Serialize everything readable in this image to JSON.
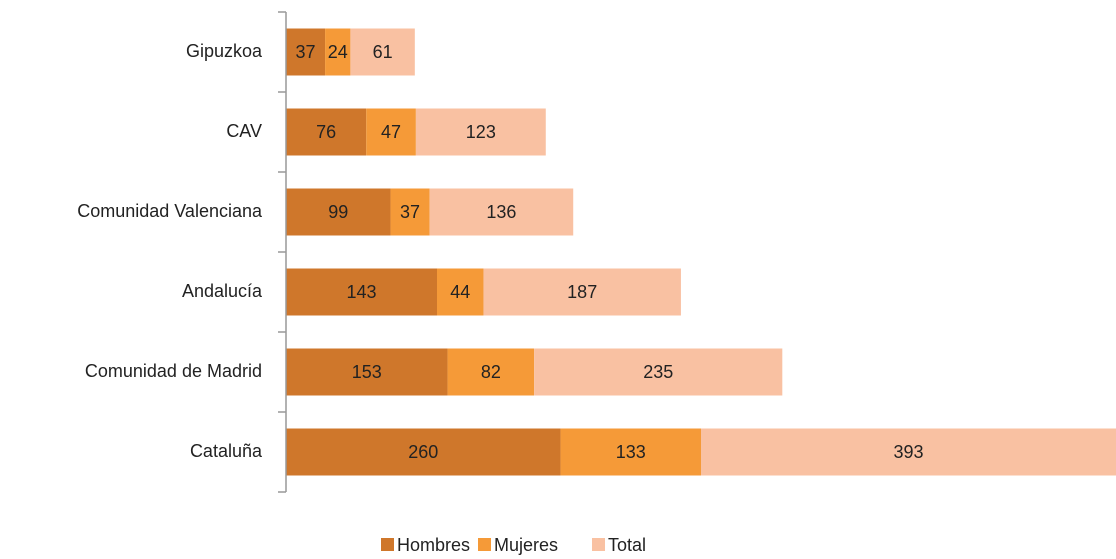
{
  "chart_data": {
    "type": "stacked-bar-horizontal",
    "categories": [
      "Gipuzkoa",
      "CAV",
      "Comunidad Valenciana",
      "Andalucía",
      "Comunidad de Madrid",
      "Cataluña"
    ],
    "series": [
      {
        "name": "Hombres",
        "color": "#cf772b",
        "values": [
          37,
          76,
          99,
          143,
          153,
          260
        ]
      },
      {
        "name": "Mujeres",
        "color": "#f59a38",
        "values": [
          24,
          47,
          37,
          44,
          82,
          133
        ]
      },
      {
        "name": "Total",
        "color": "#f9c1a2",
        "values": [
          61,
          123,
          136,
          187,
          235,
          393
        ]
      }
    ],
    "legend": "bottom"
  }
}
